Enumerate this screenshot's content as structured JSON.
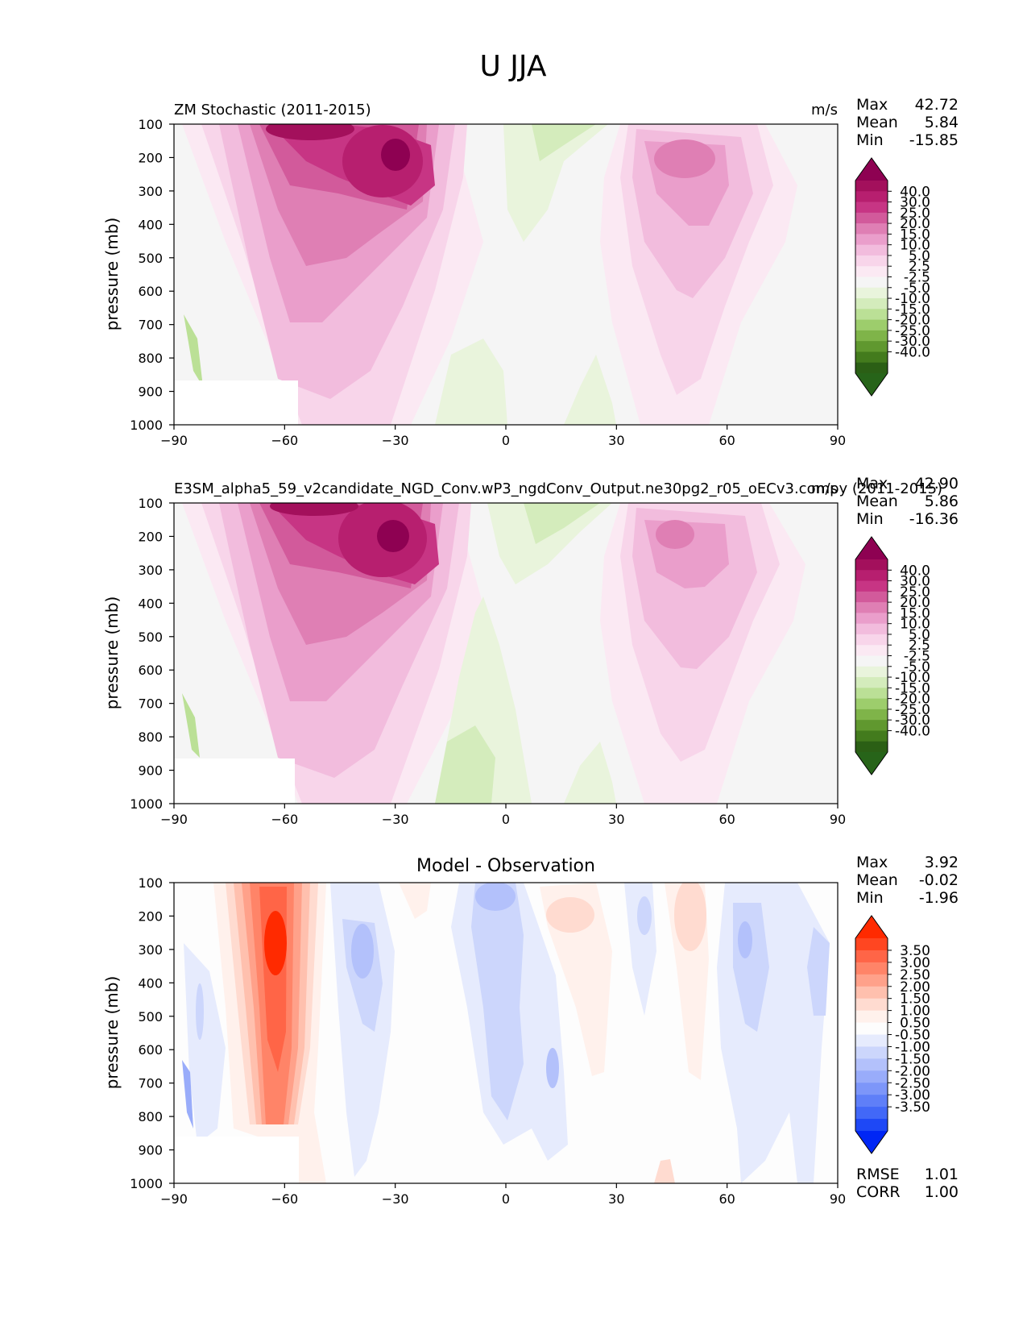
{
  "figure_title": "U JJA",
  "axis": {
    "x_ticks": [
      "−90",
      "−60",
      "−30",
      "0",
      "30",
      "60",
      "90"
    ],
    "y_ticks": [
      "100",
      "200",
      "300",
      "400",
      "500",
      "600",
      "700",
      "800",
      "900",
      "1000"
    ],
    "ylabel": "pressure (mb)"
  },
  "chart_data": [
    {
      "type": "heatmap",
      "title": "ZM Stochastic (2011-2015)",
      "units": "m/s",
      "stats": [
        [
          "Max",
          "42.72"
        ],
        [
          "Mean",
          "5.84"
        ],
        [
          "Min",
          "-15.85"
        ]
      ],
      "xlim": [
        -90,
        90
      ],
      "ylim": [
        1000,
        100
      ],
      "xlabel": "",
      "ylabel": "pressure (mb)",
      "colorbar_labels": [
        "40.0",
        "30.0",
        "25.0",
        "20.0",
        "15.0",
        "10.0",
        "5.0",
        "2.5",
        "-2.5",
        "-5.0",
        "-10.0",
        "-15.0",
        "-20.0",
        "-25.0",
        "-30.0",
        "-40.0"
      ],
      "colorbar_colors": [
        "#8e0152",
        "#a3105c",
        "#b71f6f",
        "#c73584",
        "#d25a9b",
        "#df7fb4",
        "#ea9ecb",
        "#f2bcdd",
        "#f8d5ea",
        "#fbe9f3",
        "#f5f5f5",
        "#e9f4dc",
        "#d4ecbc",
        "#bbe096",
        "#9dcd6c",
        "#7fb449",
        "#60982f",
        "#437b1d",
        "#2b5f15",
        "#276419"
      ],
      "features": [
        {
          "kind": "jet",
          "lat": -30,
          "p": 200,
          "peak": 42.72
        },
        {
          "kind": "jet",
          "lat": 48,
          "p": 200,
          "peak": 22
        },
        {
          "kind": "easterly",
          "lat": 5,
          "p": 130,
          "peak": -15.85
        }
      ]
    },
    {
      "type": "heatmap",
      "title": "E3SM_alpha5_59_v2candidate_NGD_Conv.wP3_ngdConv_Output.ne30pg2_r05_oECv3.compy (2011-2015)",
      "units": "m/s",
      "stats": [
        [
          "Max",
          "42.90"
        ],
        [
          "Mean",
          "5.86"
        ],
        [
          "Min",
          "-16.36"
        ]
      ],
      "xlim": [
        -90,
        90
      ],
      "ylim": [
        1000,
        100
      ],
      "xlabel": "",
      "ylabel": "pressure (mb)",
      "colorbar_labels": [
        "40.0",
        "30.0",
        "25.0",
        "20.0",
        "15.0",
        "10.0",
        "5.0",
        "2.5",
        "-2.5",
        "-5.0",
        "-10.0",
        "-15.0",
        "-20.0",
        "-25.0",
        "-30.0",
        "-40.0"
      ],
      "colorbar_colors": [
        "#8e0152",
        "#a3105c",
        "#b71f6f",
        "#c73584",
        "#d25a9b",
        "#df7fb4",
        "#ea9ecb",
        "#f2bcdd",
        "#f8d5ea",
        "#fbe9f3",
        "#f5f5f5",
        "#e9f4dc",
        "#d4ecbc",
        "#bbe096",
        "#9dcd6c",
        "#7fb449",
        "#60982f",
        "#437b1d",
        "#2b5f15",
        "#276419"
      ],
      "features": [
        {
          "kind": "jet",
          "lat": -31,
          "p": 200,
          "peak": 42.9
        },
        {
          "kind": "jet",
          "lat": 47,
          "p": 200,
          "peak": 21
        },
        {
          "kind": "easterly",
          "lat": 5,
          "p": 130,
          "peak": -16.36
        }
      ]
    },
    {
      "type": "heatmap",
      "title": "Model - Observation",
      "units": "",
      "stats": [
        [
          "Max",
          "3.92"
        ],
        [
          "Mean",
          "-0.02"
        ],
        [
          "Min",
          "-1.96"
        ]
      ],
      "metrics": [
        [
          "RMSE",
          "1.01"
        ],
        [
          "CORR",
          "1.00"
        ]
      ],
      "xlim": [
        -90,
        90
      ],
      "ylim": [
        1000,
        100
      ],
      "xlabel": "",
      "ylabel": "pressure (mb)",
      "colorbar_labels": [
        "3.50",
        "3.00",
        "2.50",
        "2.00",
        "1.50",
        "1.00",
        "0.50",
        "-0.50",
        "-1.00",
        "-1.50",
        "-2.00",
        "-2.50",
        "-3.00",
        "-3.50"
      ],
      "colorbar_colors": [
        "#ff2a00",
        "#ff4621",
        "#ff6547",
        "#ff8468",
        "#ffa18a",
        "#ffc0ae",
        "#ffdbd0",
        "#fff1ec",
        "#fdfdfd",
        "#e6ebfd",
        "#ccd6fc",
        "#b3c1fb",
        "#99acfa",
        "#7d96f9",
        "#5f7ff8",
        "#4268f7",
        "#1e48f6",
        "#0026f5"
      ],
      "features": [
        {
          "kind": "diff",
          "lat": -62,
          "p": 300,
          "peak": 3.92
        },
        {
          "kind": "diff",
          "lat": 2,
          "p": 170,
          "peak": -1.96
        }
      ]
    }
  ]
}
